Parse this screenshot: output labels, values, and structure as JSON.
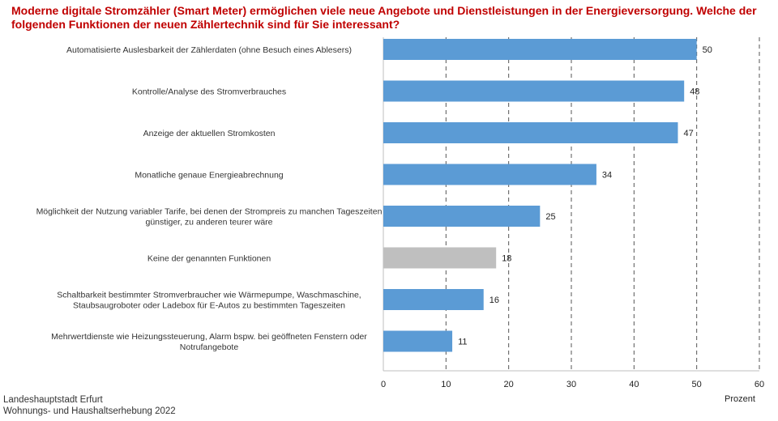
{
  "chart_data": {
    "type": "bar",
    "orientation": "horizontal",
    "title": "Moderne digitale Stromzähler (Smart Meter) ermöglichen viele neue Angebote und Dienstleistungen in der Energieversorgung. Welche der folgenden Funktionen der neuen Zählertechnik sind für Sie interessant?",
    "categories": [
      [
        "Automatisierte Auslesbarkeit der Zählerdaten (ohne Besuch eines Ablesers)"
      ],
      [
        "Kontrolle/Analyse des Stromverbrauches"
      ],
      [
        "Anzeige der aktuellen Stromkosten"
      ],
      [
        "Monatliche genaue Energieabrechnung"
      ],
      [
        "Möglichkeit der Nutzung variabler Tarife, bei denen der Strompreis zu manchen Tageszeiten",
        "günstiger, zu anderen teurer wäre"
      ],
      [
        "Keine der genannten Funktionen"
      ],
      [
        "Schaltbarkeit bestimmter Stromverbraucher wie Wärmepumpe, Waschmaschine,",
        "Staubsaugroboter oder Ladebox für E-Autos zu bestimmten Tageszeiten"
      ],
      [
        "Mehrwertdienste wie Heizungssteuerung, Alarm bspw. bei geöffneten Fenstern oder",
        "Notrufangebote"
      ]
    ],
    "values": [
      50,
      48,
      47,
      34,
      25,
      18,
      16,
      11
    ],
    "bar_colors": [
      "#5b9bd5",
      "#5b9bd5",
      "#5b9bd5",
      "#5b9bd5",
      "#5b9bd5",
      "#bfbfbf",
      "#5b9bd5",
      "#5b9bd5"
    ],
    "xlabel": "Prozent",
    "xlim": [
      0,
      60
    ],
    "xticks": [
      0,
      10,
      20,
      30,
      40,
      50,
      60
    ],
    "grid": "vertical dashed",
    "title_color": "#c00000"
  },
  "footer": {
    "line1": "Landeshauptstadt Erfurt",
    "line2": "Wohnungs- und Haushaltserhebung 2022"
  }
}
